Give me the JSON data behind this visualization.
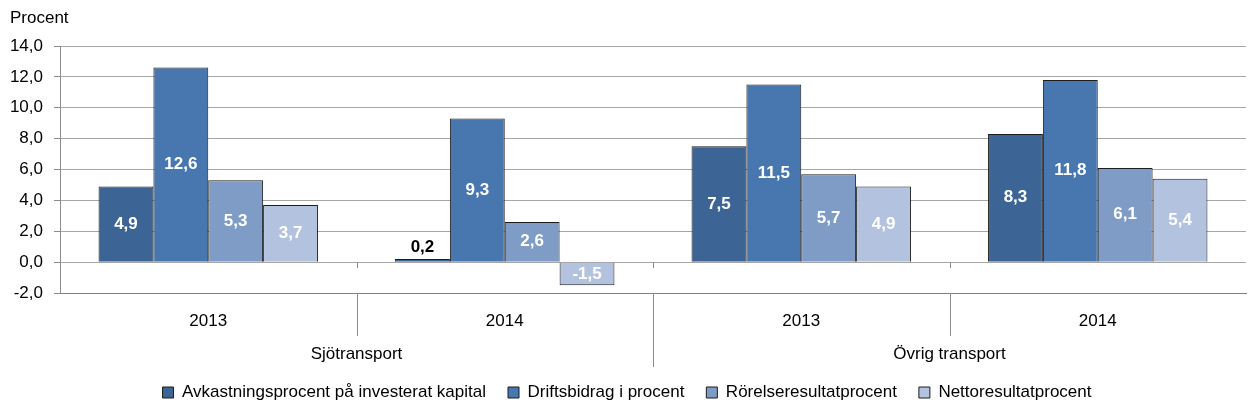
{
  "chart_data": {
    "type": "bar",
    "ylabel": "Procent",
    "categories": [
      "2013",
      "2014",
      "2013",
      "2014"
    ],
    "series": [
      {
        "name": "Avkastningsprocent på investerat kapital",
        "color": "#3c6494",
        "values": [
          4.9,
          0.2,
          7.5,
          8.3
        ],
        "value_labels": [
          "4,9",
          "0,2",
          "7,5",
          "8,3"
        ]
      },
      {
        "name": "Driftsbidrag i procent",
        "color": "#4877b0",
        "values": [
          12.6,
          9.3,
          11.5,
          11.8
        ],
        "value_labels": [
          "12,6",
          "9,3",
          "11,5",
          "11,8"
        ]
      },
      {
        "name": "Rörelseresultatprocent",
        "color": "#7f9cc7",
        "values": [
          5.3,
          2.6,
          5.7,
          6.1
        ],
        "value_labels": [
          "5,3",
          "2,6",
          "5,7",
          "6,1"
        ]
      },
      {
        "name": "Nettoresultatprocent",
        "color": "#b3c2de",
        "values": [
          3.7,
          -1.5,
          4.9,
          5.4
        ],
        "value_labels": [
          "3,7",
          "-1,5",
          "4,9",
          "5,4"
        ]
      }
    ],
    "ylim": [
      -2,
      14
    ],
    "yticks": [
      {
        "value": -2,
        "label": "-2,0"
      },
      {
        "value": 0,
        "label": "0,0"
      },
      {
        "value": 2,
        "label": "2,0"
      },
      {
        "value": 4,
        "label": "4,0"
      },
      {
        "value": 6,
        "label": "6,0"
      },
      {
        "value": 8,
        "label": "8,0"
      },
      {
        "value": 10,
        "label": "10,0"
      },
      {
        "value": 12,
        "label": "12,0"
      },
      {
        "value": 14,
        "label": "14,0"
      }
    ],
    "grid": "y",
    "legend": "bottom",
    "annotations": [
      "Sjötransport",
      "Övrig transport"
    ]
  }
}
